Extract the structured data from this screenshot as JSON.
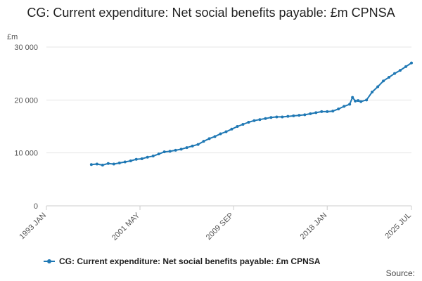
{
  "chart_data": {
    "type": "line",
    "title": "CG: Current expenditure: Net social benefits payable: £m CPNSA",
    "ylabel": "£m",
    "xlabel": "",
    "ylim": [
      0,
      30000
    ],
    "yticks": [
      0,
      10000,
      20000,
      30000
    ],
    "ytick_labels": [
      "0",
      "10 000",
      "20 000",
      "30 000"
    ],
    "xlim": [
      1993.0,
      2025.5
    ],
    "xticks": [
      1993.0,
      2001.33,
      2009.67,
      2018.0,
      2025.5
    ],
    "xtick_labels": [
      "1993 JAN",
      "2001 MAY",
      "2009 SEP",
      "2018 JAN",
      "2025 JUL"
    ],
    "series": [
      {
        "name": "CG: Current expenditure: Net social benefits payable: £m CPNSA",
        "color": "#1f78b4",
        "x": [
          1997.0,
          1997.5,
          1998.0,
          1998.5,
          1999.0,
          1999.5,
          2000.0,
          2000.5,
          2001.0,
          2001.5,
          2002.0,
          2002.5,
          2003.0,
          2003.5,
          2004.0,
          2004.5,
          2005.0,
          2005.5,
          2006.0,
          2006.5,
          2007.0,
          2007.5,
          2008.0,
          2008.5,
          2009.0,
          2009.5,
          2010.0,
          2010.5,
          2011.0,
          2011.5,
          2012.0,
          2012.5,
          2013.0,
          2013.5,
          2014.0,
          2014.5,
          2015.0,
          2015.5,
          2016.0,
          2016.5,
          2017.0,
          2017.5,
          2018.0,
          2018.5,
          2019.0,
          2019.5,
          2020.0,
          2020.25,
          2020.5,
          2020.75,
          2021.0,
          2021.5,
          2022.0,
          2022.5,
          2023.0,
          2023.5,
          2024.0,
          2024.5,
          2025.0,
          2025.5
        ],
        "values": [
          7800,
          7900,
          7700,
          8000,
          7900,
          8100,
          8300,
          8500,
          8800,
          8900,
          9200,
          9400,
          9800,
          10200,
          10300,
          10500,
          10700,
          11000,
          11300,
          11600,
          12200,
          12700,
          13100,
          13600,
          14000,
          14500,
          15000,
          15400,
          15800,
          16100,
          16300,
          16500,
          16700,
          16800,
          16800,
          16900,
          17000,
          17100,
          17200,
          17400,
          17600,
          17800,
          17800,
          17900,
          18300,
          18800,
          19200,
          20500,
          19800,
          19900,
          19700,
          20000,
          21500,
          22500,
          23600,
          24300,
          25000,
          25600,
          26300,
          27000
        ]
      }
    ]
  },
  "legend": {
    "label": "CG: Current expenditure: Net social benefits payable: £m CPNSA"
  },
  "source_label": "Source:"
}
